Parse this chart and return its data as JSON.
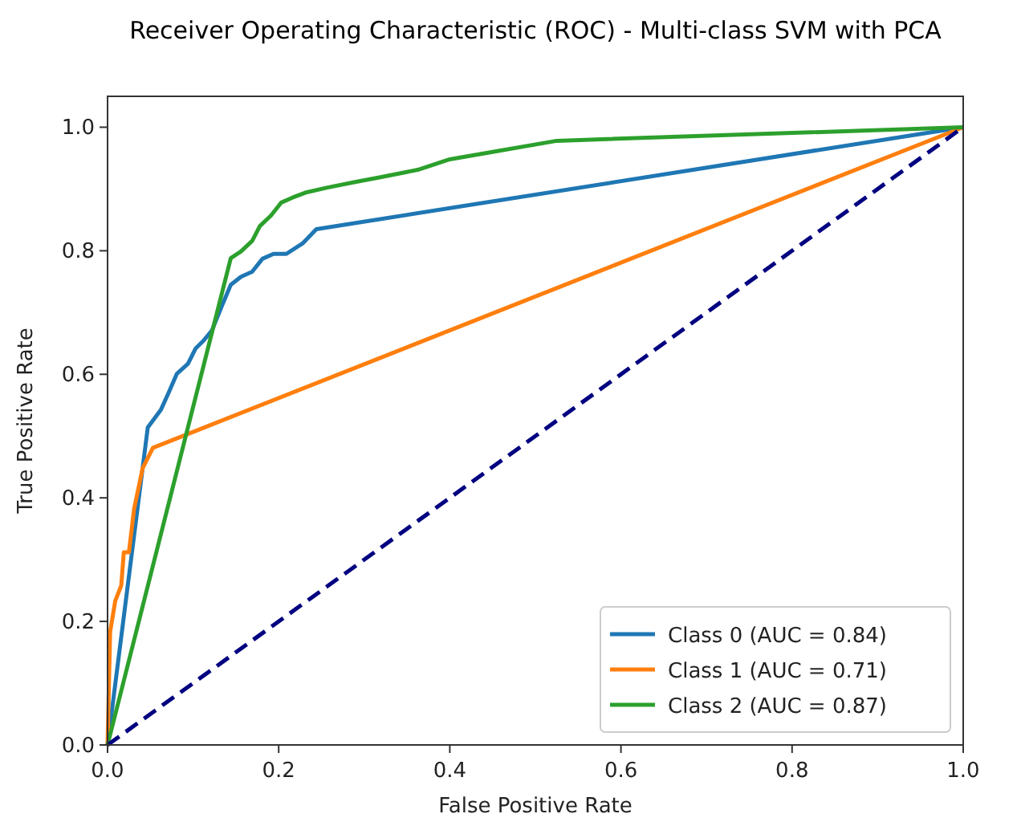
{
  "chart_data": {
    "type": "line",
    "title": "Receiver Operating Characteristic (ROC) - Multi-class SVM with PCA",
    "xlabel": "False Positive Rate",
    "ylabel": "True Positive Rate",
    "xlim": [
      0,
      1
    ],
    "ylim": [
      0,
      1.05
    ],
    "xticks": [
      {
        "value": 0,
        "label": "0.0"
      },
      {
        "value": 0.2,
        "label": "0.2"
      },
      {
        "value": 0.4,
        "label": "0.4"
      },
      {
        "value": 0.6,
        "label": "0.6"
      },
      {
        "value": 0.8,
        "label": "0.8"
      },
      {
        "value": 1,
        "label": "1.0"
      }
    ],
    "yticks": [
      {
        "value": 0,
        "label": "0.0"
      },
      {
        "value": 0.2,
        "label": "0.2"
      },
      {
        "value": 0.4,
        "label": "0.4"
      },
      {
        "value": 0.6,
        "label": "0.6"
      },
      {
        "value": 0.8,
        "label": "0.8"
      },
      {
        "value": 1,
        "label": "1.0"
      }
    ],
    "grid": false,
    "legend": "bottom right",
    "marker": "none",
    "line_style": "solid",
    "series": [
      {
        "name": "Class 0 (AUC = 0.84)",
        "color": "#1f77b4",
        "x": [
          0,
          0.047,
          0.0625,
          0.072,
          0.081,
          0.094,
          0.103,
          0.1125,
          0.122,
          0.134,
          0.144,
          0.156,
          0.169,
          0.181,
          0.194,
          0.209,
          0.228,
          0.244,
          1
        ],
        "values": [
          0,
          0.514,
          0.543,
          0.572,
          0.601,
          0.617,
          0.642,
          0.655,
          0.671,
          0.712,
          0.745,
          0.758,
          0.766,
          0.787,
          0.795,
          0.795,
          0.812,
          0.835,
          1
        ]
      },
      {
        "name": "Class 1 (AUC = 0.71)",
        "color": "#ff7f0e",
        "x": [
          0,
          0.003,
          0.009,
          0.016,
          0.019,
          0.025,
          0.031,
          0.041,
          0.053,
          1
        ],
        "values": [
          0,
          0.183,
          0.233,
          0.258,
          0.312,
          0.312,
          0.382,
          0.448,
          0.481,
          1
        ]
      },
      {
        "name": "Class 2 (AUC = 0.87)",
        "color": "#2ca02c",
        "x": [
          0,
          0.144,
          0.156,
          0.169,
          0.178,
          0.191,
          0.203,
          0.216,
          0.231,
          0.256,
          0.288,
          0.319,
          0.3625,
          0.4,
          0.45,
          0.525,
          1
        ],
        "values": [
          0,
          0.788,
          0.799,
          0.816,
          0.84,
          0.857,
          0.878,
          0.886,
          0.894,
          0.902,
          0.911,
          0.919,
          0.931,
          0.948,
          0.96,
          0.978,
          1
        ]
      },
      {
        "color": "#000080",
        "line_style": "dashed",
        "x": [
          0,
          1
        ],
        "values": [
          0,
          1
        ]
      }
    ]
  }
}
